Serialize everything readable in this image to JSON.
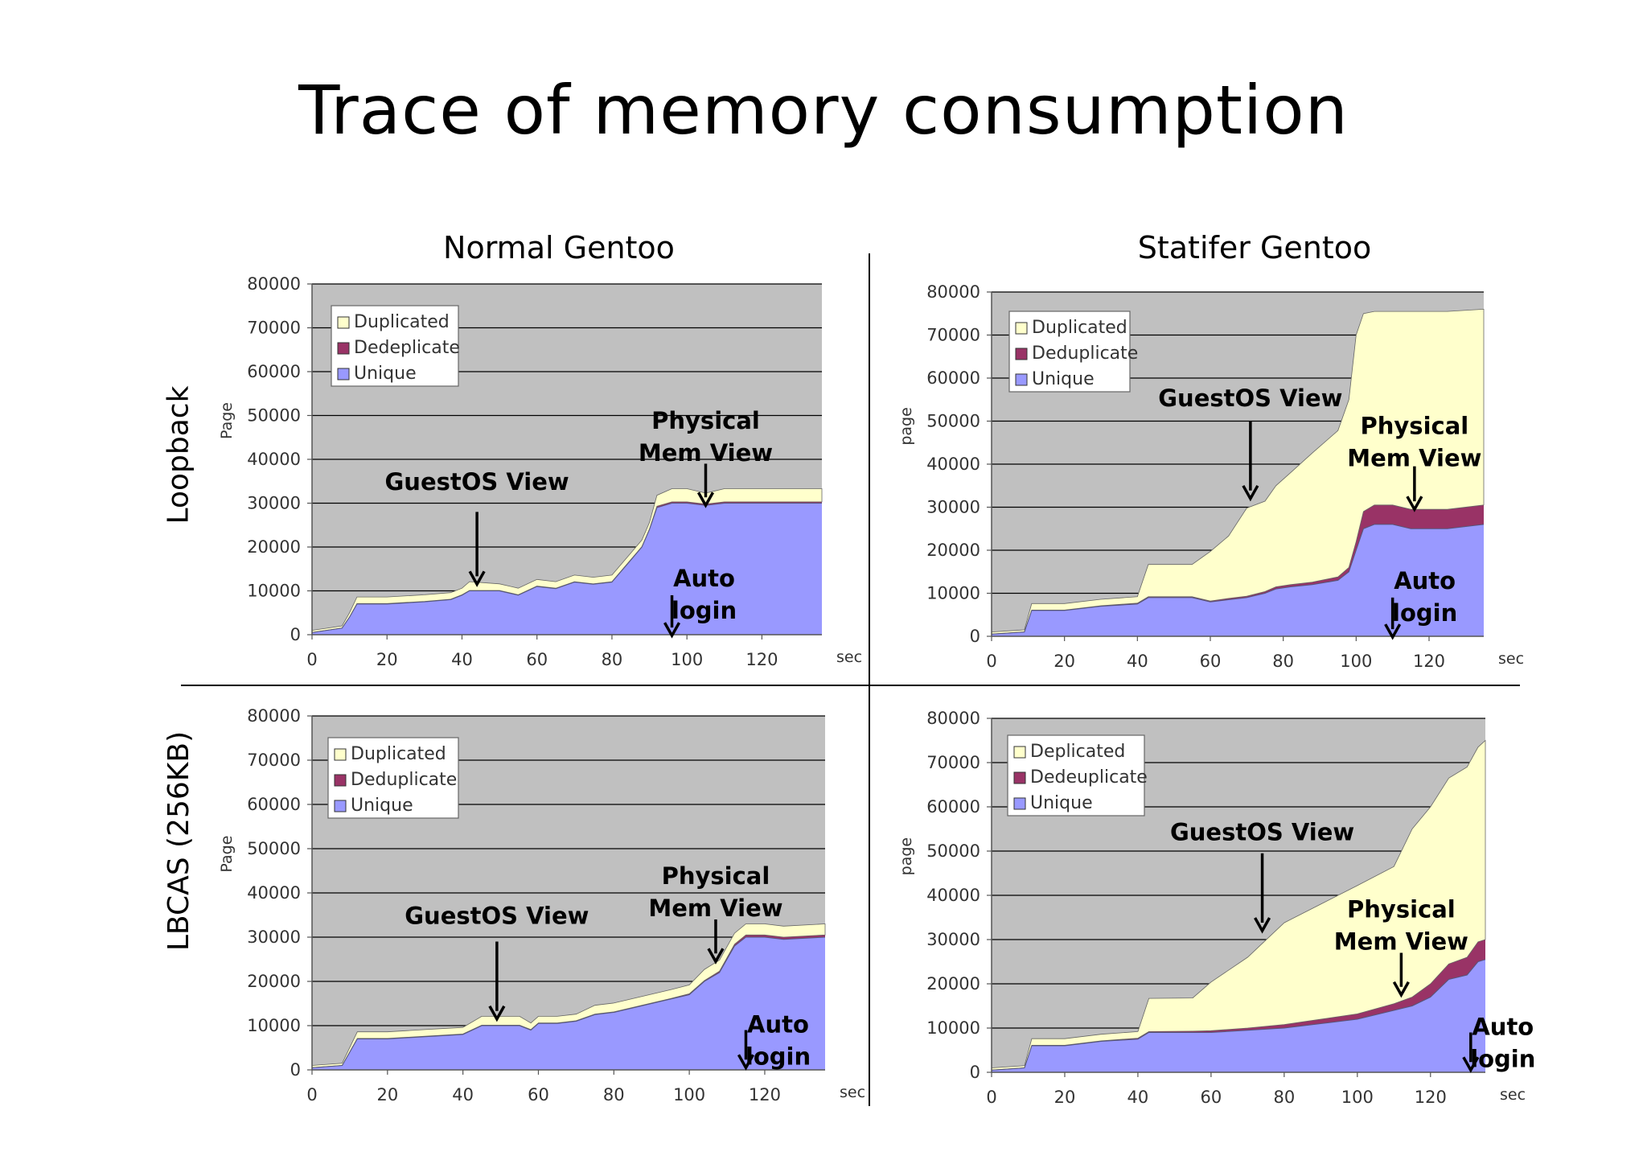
{
  "slide": {
    "title": "Trace of memory consumption",
    "col_headers": [
      "Normal Gentoo",
      "Statifer Gentoo"
    ],
    "row_headers": [
      "Loopback",
      "LBCAS (256KB)"
    ]
  },
  "colors": {
    "plot_bg": "#c0c0c0",
    "unique": "#9999ff",
    "deduplicate": "#993366",
    "duplicated": "#ffffcc",
    "grid": "#000000"
  },
  "chart_data": [
    {
      "id": "normal-loopback",
      "type": "area",
      "stacked": true,
      "ylabel": "Page",
      "xunit": "sec",
      "xlim": [
        0,
        136
      ],
      "ylim": [
        0,
        80000
      ],
      "xticks": [
        0,
        20,
        40,
        60,
        80,
        100,
        120
      ],
      "yticks": [
        0,
        10000,
        20000,
        30000,
        40000,
        50000,
        60000,
        70000,
        80000
      ],
      "grid": true,
      "legend_position": "top-left",
      "legend": [
        "Duplicated",
        "Dedeplicate",
        "Unique"
      ],
      "x": [
        0,
        8,
        10,
        12,
        20,
        30,
        37,
        40,
        42,
        50,
        55,
        60,
        65,
        70,
        75,
        80,
        85,
        88,
        90,
        92,
        96,
        100,
        105,
        110,
        120,
        136
      ],
      "series": [
        {
          "name": "Unique",
          "values": [
            500,
            1500,
            4000,
            7000,
            7000,
            7500,
            8000,
            9000,
            10000,
            10000,
            9000,
            11000,
            10500,
            12000,
            11500,
            12000,
            17000,
            20000,
            24000,
            29000,
            30000,
            30000,
            29500,
            30000,
            30000,
            30000
          ]
        },
        {
          "name": "Dedeplicate",
          "values": [
            0,
            0,
            0,
            100,
            100,
            100,
            100,
            100,
            100,
            100,
            100,
            100,
            100,
            100,
            100,
            100,
            100,
            100,
            100,
            300,
            300,
            300,
            300,
            300,
            300,
            300
          ]
        },
        {
          "name": "Duplicated",
          "values": [
            500,
            500,
            1000,
            1500,
            1500,
            1500,
            1500,
            1500,
            2000,
            1500,
            1500,
            1500,
            1500,
            1500,
            1500,
            1500,
            1500,
            1500,
            1500,
            2500,
            3000,
            3000,
            2500,
            3000,
            3000,
            3000
          ]
        }
      ],
      "annotations": [
        {
          "lines": [
            "GuestOS View"
          ],
          "x": 44,
          "y_text": 33000,
          "y_arrow_from": 28000,
          "y_arrow_to": 11500
        },
        {
          "lines": [
            "Physical",
            "Mem View"
          ],
          "x": 105,
          "y_text": 47000,
          "y_arrow_from": 39000,
          "y_arrow_to": 29500
        },
        {
          "lines": [
            "Auto",
            "login"
          ],
          "x": 96,
          "y_text": 11000,
          "y_arrow_from": 9000,
          "y_arrow_to": -200
        }
      ]
    },
    {
      "id": "statifer-loopback",
      "type": "area",
      "stacked": true,
      "ylabel": "page",
      "xunit": "sec",
      "xlim": [
        0,
        135
      ],
      "ylim": [
        0,
        80000
      ],
      "xticks": [
        0,
        20,
        40,
        60,
        80,
        100,
        120
      ],
      "yticks": [
        0,
        10000,
        20000,
        30000,
        40000,
        50000,
        60000,
        70000,
        80000
      ],
      "grid": true,
      "legend_position": "top-left",
      "legend": [
        "Duplicated",
        "Deduplicate",
        "Unique"
      ],
      "x": [
        0,
        9,
        11,
        20,
        30,
        40,
        43,
        55,
        60,
        65,
        70,
        75,
        78,
        82,
        88,
        95,
        98,
        100,
        102,
        105,
        110,
        115,
        120,
        125,
        135
      ],
      "series": [
        {
          "name": "Unique",
          "values": [
            500,
            1000,
            6000,
            6000,
            7000,
            7500,
            9000,
            9000,
            8000,
            8500,
            9000,
            10000,
            11000,
            11500,
            12000,
            13000,
            15000,
            20000,
            25000,
            26000,
            26000,
            25000,
            25000,
            25000,
            26000
          ]
        },
        {
          "name": "Deduplicate",
          "values": [
            0,
            0,
            100,
            100,
            100,
            200,
            200,
            200,
            200,
            300,
            300,
            400,
            500,
            500,
            600,
            800,
            1000,
            2000,
            4000,
            4500,
            4500,
            4500,
            4500,
            4500,
            4500
          ]
        },
        {
          "name": "Duplicated",
          "values": [
            500,
            500,
            1500,
            1500,
            1500,
            1500,
            7500,
            7500,
            11500,
            14500,
            20500,
            21000,
            23500,
            26000,
            30000,
            34000,
            39000,
            48000,
            46000,
            45000,
            45000,
            46000,
            46000,
            46000,
            45500
          ]
        }
      ],
      "annotations": [
        {
          "lines": [
            "GuestOS View"
          ],
          "x": 71,
          "y_text": 53500,
          "y_arrow_from": 50000,
          "y_arrow_to": 32000
        },
        {
          "lines": [
            "Physical",
            "Mem View"
          ],
          "x": 116,
          "y_text": 47000,
          "y_arrow_from": 39500,
          "y_arrow_to": 29500
        },
        {
          "lines": [
            "Auto",
            "login"
          ],
          "x": 110,
          "y_text": 11000,
          "y_arrow_from": 9000,
          "y_arrow_to": -200
        }
      ]
    },
    {
      "id": "normal-lbcas",
      "type": "area",
      "stacked": true,
      "ylabel": "Page",
      "xunit": "sec",
      "xlim": [
        0,
        136
      ],
      "ylim": [
        0,
        80000
      ],
      "xticks": [
        0,
        20,
        40,
        60,
        80,
        100,
        120
      ],
      "yticks": [
        0,
        10000,
        20000,
        30000,
        40000,
        50000,
        60000,
        70000,
        80000
      ],
      "grid": true,
      "legend_position": "top-left",
      "legend": [
        "Duplicated",
        "Deduplicate",
        "Unique"
      ],
      "x": [
        0,
        8,
        12,
        20,
        30,
        40,
        45,
        55,
        58,
        60,
        65,
        70,
        75,
        80,
        85,
        90,
        95,
        100,
        104,
        108,
        112,
        115,
        120,
        125,
        136
      ],
      "series": [
        {
          "name": "Unique",
          "values": [
            500,
            1000,
            7000,
            7000,
            7500,
            8000,
            10000,
            10000,
            9000,
            10500,
            10500,
            11000,
            12500,
            13000,
            14000,
            15000,
            16000,
            17000,
            20000,
            22000,
            28000,
            30000,
            30000,
            29500,
            30000
          ]
        },
        {
          "name": "Deduplicate",
          "values": [
            0,
            0,
            100,
            100,
            100,
            100,
            100,
            100,
            100,
            100,
            100,
            100,
            100,
            100,
            100,
            100,
            100,
            200,
            200,
            300,
            400,
            500,
            500,
            500,
            500
          ]
        },
        {
          "name": "Duplicated",
          "values": [
            500,
            500,
            1500,
            1500,
            1500,
            1500,
            2000,
            2000,
            1500,
            1500,
            1500,
            1500,
            2000,
            2000,
            2000,
            2000,
            2000,
            2000,
            2500,
            2500,
            2500,
            2500,
            2500,
            2500,
            2500
          ]
        }
      ],
      "annotations": [
        {
          "lines": [
            "GuestOS View"
          ],
          "x": 49,
          "y_text": 33000,
          "y_arrow_from": 29000,
          "y_arrow_to": 11500
        },
        {
          "lines": [
            "Physical",
            "Mem View"
          ],
          "x": 107,
          "y_text": 42000,
          "y_arrow_from": 34000,
          "y_arrow_to": 24500
        },
        {
          "lines": [
            "Auto",
            "login"
          ],
          "x": 115,
          "y_text": 8500,
          "y_arrow_from": 9000,
          "y_arrow_to": 500
        }
      ]
    },
    {
      "id": "statifer-lbcas",
      "type": "area",
      "stacked": true,
      "ylabel": "page",
      "xunit": "sec",
      "xlim": [
        0,
        135
      ],
      "ylim": [
        0,
        80000
      ],
      "xticks": [
        0,
        20,
        40,
        60,
        80,
        100,
        120
      ],
      "yticks": [
        0,
        10000,
        20000,
        30000,
        40000,
        50000,
        60000,
        70000,
        80000
      ],
      "grid": true,
      "legend_position": "top-left",
      "legend": [
        "Deplicated",
        "Dedeuplicate",
        "Unique"
      ],
      "x": [
        0,
        9,
        11,
        20,
        30,
        40,
        43,
        55,
        60,
        70,
        80,
        90,
        100,
        110,
        115,
        120,
        125,
        130,
        133,
        135
      ],
      "series": [
        {
          "name": "Unique",
          "values": [
            500,
            1000,
            6000,
            6000,
            7000,
            7500,
            9000,
            9000,
            9000,
            9500,
            10000,
            11000,
            12000,
            14000,
            15000,
            17000,
            21000,
            22000,
            25000,
            25500
          ]
        },
        {
          "name": "Dedeuplicate",
          "values": [
            0,
            0,
            100,
            100,
            100,
            200,
            200,
            300,
            400,
            500,
            800,
            1000,
            1200,
            1500,
            2000,
            3000,
            3500,
            4000,
            4500,
            4500
          ]
        },
        {
          "name": "Deplicated",
          "values": [
            500,
            500,
            1500,
            1500,
            1500,
            1500,
            7500,
            7500,
            11000,
            16000,
            23000,
            26000,
            29000,
            31000,
            38000,
            40000,
            42000,
            43000,
            44000,
            45000
          ]
        }
      ],
      "annotations": [
        {
          "lines": [
            "GuestOS View"
          ],
          "x": 74,
          "y_text": 52500,
          "y_arrow_from": 49500,
          "y_arrow_to": 32000
        },
        {
          "lines": [
            "Physical",
            "Mem View"
          ],
          "x": 112,
          "y_text": 35000,
          "y_arrow_from": 27000,
          "y_arrow_to": 17500
        },
        {
          "lines": [
            "Auto",
            "login"
          ],
          "x": 131,
          "y_text": 8500,
          "y_arrow_from": 9000,
          "y_arrow_to": 500
        }
      ]
    }
  ]
}
